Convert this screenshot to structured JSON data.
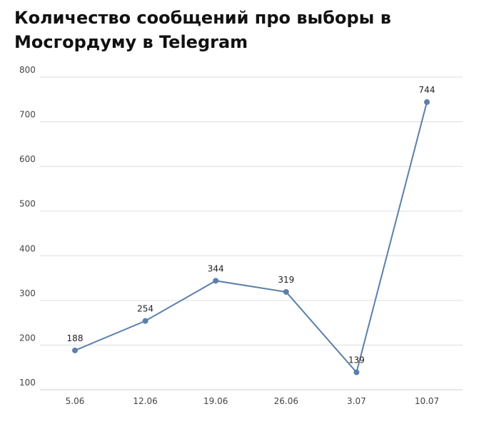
{
  "chart_data": {
    "type": "line",
    "title": "Количество сообщений про выборы в Мосгордуму в Telegram",
    "categories": [
      "5.06",
      "12.06",
      "19.06",
      "26.06",
      "3.07",
      "10.07"
    ],
    "series": [
      {
        "values": [
          188,
          254,
          344,
          319,
          139,
          744
        ]
      }
    ],
    "data_labels": [
      "188",
      "254",
      "344",
      "319",
      "139",
      "744"
    ],
    "y_ticks": [
      "100",
      "200",
      "300",
      "400",
      "500",
      "600",
      "700",
      "800"
    ],
    "ylim": [
      100,
      800
    ],
    "grid": true,
    "xlabel": "",
    "ylabel": "",
    "colors": {
      "line": "#5b7faa",
      "marker": "#5b7faa",
      "grid": "#dddddd",
      "axis": "#cfcfcf"
    }
  }
}
